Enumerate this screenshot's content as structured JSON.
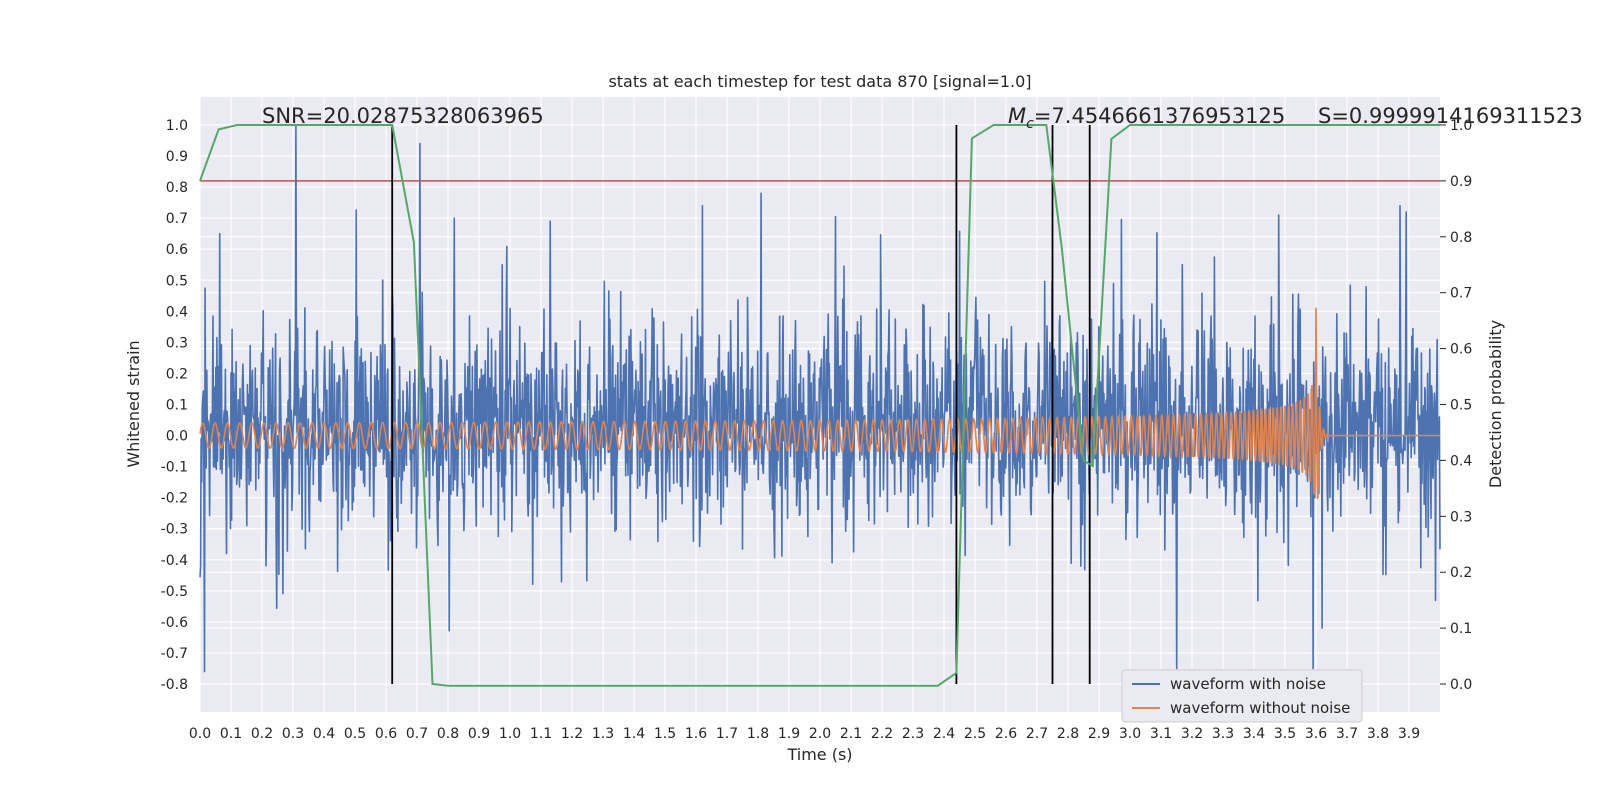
{
  "chart_data": {
    "type": "line",
    "title": "stats at each timestep for test data 870 [signal=1.0]",
    "xlabel": "Time (s)",
    "ylabel": "Whitened strain",
    "y2label": "Detection probability",
    "xlim": [
      0.0,
      4.0
    ],
    "ylim": [
      -0.89,
      1.09
    ],
    "y2lim": [
      -0.05,
      1.05
    ],
    "x_ticks": [
      0.0,
      0.1,
      0.2,
      0.3,
      0.4,
      0.5,
      0.6,
      0.7,
      0.8,
      0.9,
      1.0,
      1.1,
      1.2,
      1.3,
      1.4,
      1.5,
      1.6,
      1.7,
      1.8,
      1.9,
      2.0,
      2.1,
      2.2,
      2.3,
      2.4,
      2.5,
      2.6,
      2.7,
      2.8,
      2.9,
      3.0,
      3.1,
      3.2,
      3.3,
      3.4,
      3.5,
      3.6,
      3.7,
      3.8,
      3.9
    ],
    "y_ticks": [
      1.0,
      0.9,
      0.8,
      0.7,
      0.6,
      0.5,
      0.4,
      0.3,
      0.2,
      0.1,
      0.0,
      -0.1,
      -0.2,
      -0.3,
      -0.4,
      -0.5,
      -0.6,
      -0.7,
      -0.8
    ],
    "y2_ticks": [
      1.0,
      0.9,
      0.8,
      0.7,
      0.6,
      0.5,
      0.4,
      0.3,
      0.2,
      0.1,
      0.0
    ],
    "grid": true,
    "legend_position": "bottom-right",
    "series": [
      {
        "name": "waveform with noise",
        "color": "#4c72b0",
        "description": "noisy whitened strain, approx. amplitude range -0.75 to 1.0 over 0-4 s",
        "spikes": [
          {
            "x": 0.31,
            "y": 1.0
          },
          {
            "x": 0.71,
            "y": 0.94
          },
          {
            "x": 0.82,
            "y": 0.7
          },
          {
            "x": 1.62,
            "y": 0.74
          },
          {
            "x": 1.81,
            "y": 0.78
          },
          {
            "x": 3.48,
            "y": 0.71
          },
          {
            "x": 3.87,
            "y": 0.74
          },
          {
            "x": 3.62,
            "y": -0.62
          },
          {
            "x": 3.59,
            "y": -0.75
          },
          {
            "x": 3.15,
            "y": -0.75
          }
        ]
      },
      {
        "name": "waveform without noise",
        "color": "#dd8452",
        "description": "inspiral chirp: frequency and amplitude increasing until merger near 3.6 s, then flat",
        "chirp": {
          "t_merge": 3.6,
          "amp_start": 0.04,
          "amp_peak": 0.42,
          "f_start": 25,
          "f_end": 80
        }
      },
      {
        "name": "detection probability",
        "color": "#55a868",
        "axis": "right",
        "x": [
          0.0,
          0.06,
          0.12,
          0.62,
          0.69,
          0.75,
          0.8,
          2.38,
          2.44,
          2.49,
          2.56,
          2.73,
          2.78,
          2.85,
          2.88,
          2.94,
          3.0,
          4.0
        ],
        "y": [
          0.9,
          0.992,
          1.0,
          1.0,
          0.79,
          0.0,
          -0.003,
          -0.003,
          0.02,
          0.976,
          1.0,
          1.0,
          0.78,
          0.4,
          0.39,
          0.975,
          1.0,
          1.0
        ]
      }
    ],
    "threshold": {
      "y2": 0.9,
      "color": "#c44e52"
    },
    "vlines": [
      0.62,
      2.44,
      2.75,
      2.87
    ],
    "annotations": {
      "snr": "SNR=20.02875328063965",
      "mc_symbol": "M",
      "mc_sub": "c",
      "mc_value": "=7.4546661376953125",
      "s": "S=0.9999914169311523"
    }
  }
}
